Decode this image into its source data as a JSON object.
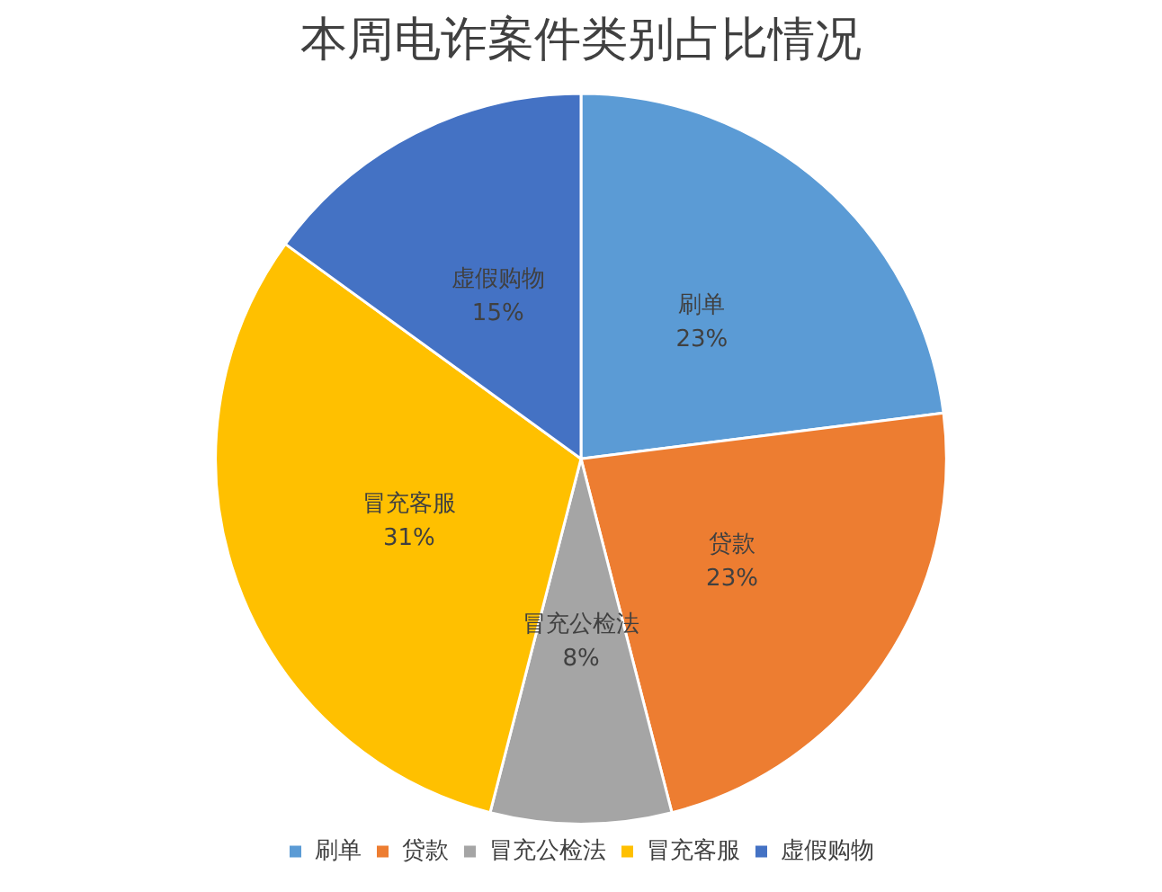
{
  "chart_data": {
    "type": "pie",
    "title": "本周电诈案件类别占比情况",
    "categories": [
      "刷单",
      "贷款",
      "冒充公检法",
      "冒充客服",
      "虚假购物"
    ],
    "values": [
      23,
      23,
      8,
      31,
      15
    ],
    "value_labels": [
      "23%",
      "23%",
      "8%",
      "31%",
      "15%"
    ],
    "colors": [
      "#5b9bd5",
      "#ed7d31",
      "#a5a5a5",
      "#ffc000",
      "#4472c4"
    ],
    "legend": "bottom"
  }
}
